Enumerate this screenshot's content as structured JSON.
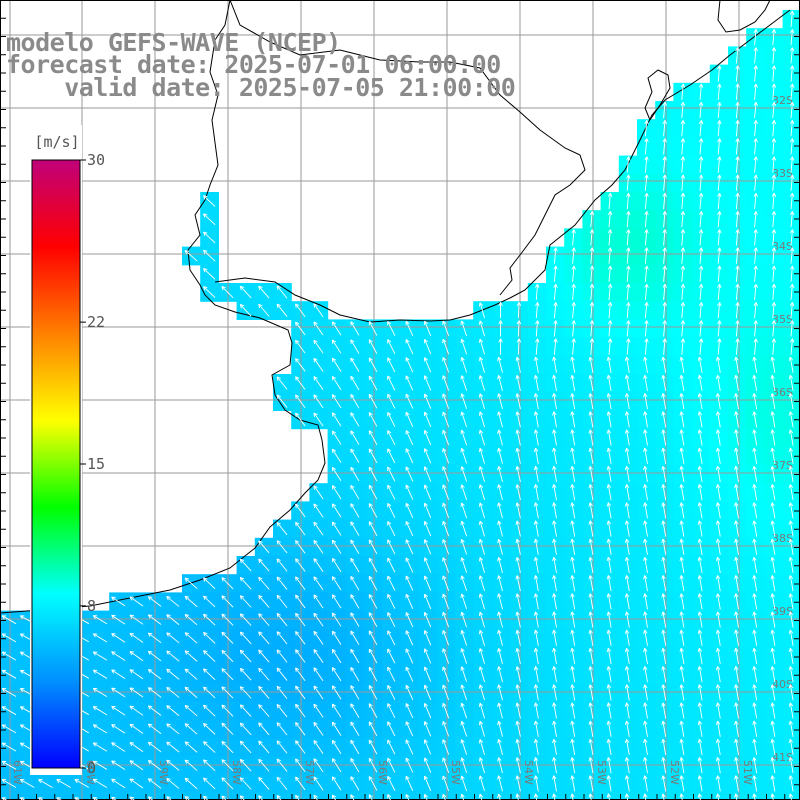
{
  "title": {
    "model": "modelo GEFS-WAVE (NCEP)",
    "forecast": "forecast date: 2025-07-01 06:00:00",
    "valid": "    valid date: 2025-07-05 21:00:00"
  },
  "colorbar": {
    "unit": "[m/s]",
    "min": 0,
    "max": 30,
    "ticks": [
      "0",
      "8",
      "15",
      "22",
      "30"
    ],
    "tick_values": [
      0,
      8,
      15,
      22,
      30
    ],
    "stops": [
      "#0000ff",
      "#0090ff",
      "#00ffff",
      "#00ff00",
      "#ffff00",
      "#ff8000",
      "#ff0000",
      "#c0007a"
    ]
  },
  "map": {
    "variable": "wind speed and direction",
    "lat_labels": [
      "32S",
      "33S",
      "34S",
      "35S",
      "36S",
      "37S",
      "38S",
      "39S",
      "40S",
      "41S"
    ],
    "lon_labels": [
      "61W",
      "60W",
      "59W",
      "58W",
      "57W",
      "56W",
      "55W",
      "54W",
      "53W",
      "52W",
      "51W"
    ],
    "land_color": "#ffffff",
    "grid_color": "#9a9a9a",
    "coast_color": "#000000"
  }
}
